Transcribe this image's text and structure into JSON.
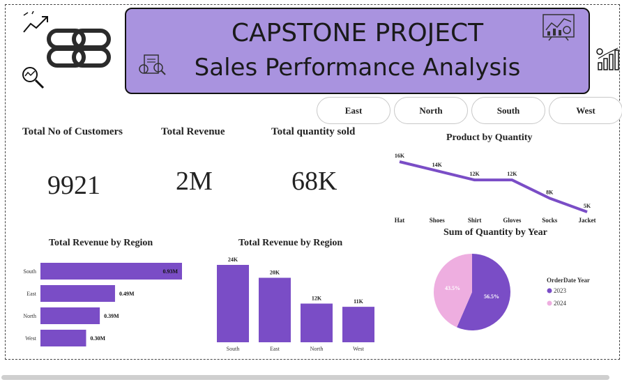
{
  "banner": {
    "title": "CAPSTONE PROJECT",
    "subtitle": "Sales Performance Analysis",
    "color": "#a993df"
  },
  "slicers": [
    "East",
    "North",
    "South",
    "West"
  ],
  "kpis": [
    {
      "title": "Total No of Customers",
      "value": "9921"
    },
    {
      "title": "Total Revenue",
      "value": "2M"
    },
    {
      "title": "Total quantity sold",
      "value": "68K"
    }
  ],
  "colors": {
    "accent": "#7a4dc6",
    "pie_2023": "#7a4dc6",
    "pie_2024": "#eeaee0"
  },
  "chart_data": [
    {
      "type": "line",
      "title": "Product by Quantity",
      "categories": [
        "Hat",
        "Shoes",
        "Shirt",
        "Gloves",
        "Socks",
        "Jacket"
      ],
      "values": [
        16,
        14,
        12,
        12,
        8,
        5
      ],
      "labels": [
        "16K",
        "14K",
        "12K",
        "12K",
        "8K",
        "5K"
      ],
      "ylim": [
        0,
        18
      ]
    },
    {
      "type": "bar",
      "orientation": "horizontal",
      "title": "Total Revenue by Region",
      "categories": [
        "South",
        "East",
        "North",
        "West"
      ],
      "values": [
        0.93,
        0.49,
        0.39,
        0.3
      ],
      "labels": [
        "0.93M",
        "0.49M",
        "0.39M",
        "0.30M"
      ],
      "xlim": [
        0,
        0.93
      ]
    },
    {
      "type": "bar",
      "orientation": "vertical",
      "title": "Total Revenue by Region",
      "categories": [
        "South",
        "East",
        "North",
        "West"
      ],
      "values": [
        24,
        20,
        12,
        11
      ],
      "labels": [
        "24K",
        "20K",
        "12K",
        "11K"
      ],
      "ylim": [
        0,
        24
      ]
    },
    {
      "type": "pie",
      "title": "Sum of Quantity by Year",
      "legend_title": "OrderDate Year",
      "categories": [
        "2023",
        "2024"
      ],
      "values": [
        56.5,
        43.5
      ],
      "labels": [
        "56.5%",
        "43.5%"
      ],
      "legend": "right"
    }
  ]
}
